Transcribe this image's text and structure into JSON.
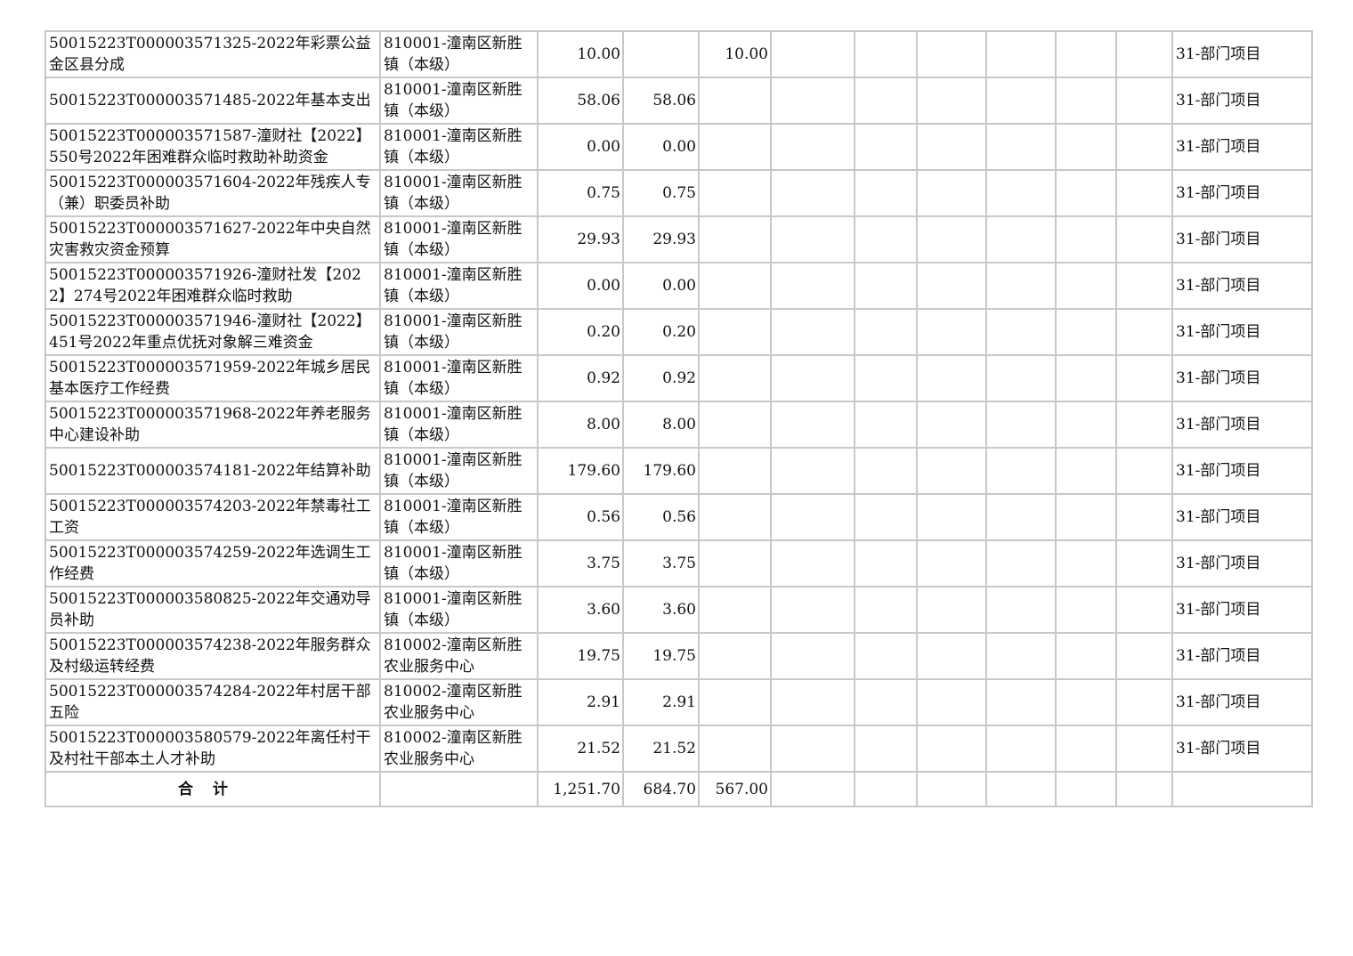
{
  "columns_count": 12,
  "rows": [
    {
      "project": "50015223T000003571325-2022年彩票公益金区县分成",
      "unit": "810001-潼南区新胜镇（本级）",
      "total": "10.00",
      "c1": "",
      "c2": "10.00",
      "type": "31-部门项目"
    },
    {
      "project": "50015223T000003571485-2022年基本支出",
      "unit": "810001-潼南区新胜镇（本级）",
      "total": "58.06",
      "c1": "58.06",
      "c2": "",
      "type": "31-部门项目"
    },
    {
      "project": "50015223T000003571587-潼财社【2022】550号2022年困难群众临时救助补助资金",
      "unit": "810001-潼南区新胜镇（本级）",
      "total": "0.00",
      "c1": "0.00",
      "c2": "",
      "type": "31-部门项目"
    },
    {
      "project": "50015223T000003571604-2022年残疾人专（兼）职委员补助",
      "unit": "810001-潼南区新胜镇（本级）",
      "total": "0.75",
      "c1": "0.75",
      "c2": "",
      "type": "31-部门项目"
    },
    {
      "project": "50015223T000003571627-2022年中央自然灾害救灾资金预算",
      "unit": "810001-潼南区新胜镇（本级）",
      "total": "29.93",
      "c1": "29.93",
      "c2": "",
      "type": "31-部门项目"
    },
    {
      "project": "50015223T000003571926-潼财社发【2022】274号2022年困难群众临时救助",
      "unit": "810001-潼南区新胜镇（本级）",
      "total": "0.00",
      "c1": "0.00",
      "c2": "",
      "type": "31-部门项目"
    },
    {
      "project": "50015223T000003571946-潼财社【2022】451号2022年重点优抚对象解三难资金",
      "unit": "810001-潼南区新胜镇（本级）",
      "total": "0.20",
      "c1": "0.20",
      "c2": "",
      "type": "31-部门项目"
    },
    {
      "project": "50015223T000003571959-2022年城乡居民基本医疗工作经费",
      "unit": "810001-潼南区新胜镇（本级）",
      "total": "0.92",
      "c1": "0.92",
      "c2": "",
      "type": "31-部门项目"
    },
    {
      "project": "50015223T000003571968-2022年养老服务中心建设补助",
      "unit": "810001-潼南区新胜镇（本级）",
      "total": "8.00",
      "c1": "8.00",
      "c2": "",
      "type": "31-部门项目"
    },
    {
      "project": "50015223T000003574181-2022年结算补助",
      "unit": "810001-潼南区新胜镇（本级）",
      "total": "179.60",
      "c1": "179.60",
      "c2": "",
      "type": "31-部门项目"
    },
    {
      "project": "50015223T000003574203-2022年禁毒社工工资",
      "unit": "810001-潼南区新胜镇（本级）",
      "total": "0.56",
      "c1": "0.56",
      "c2": "",
      "type": "31-部门项目"
    },
    {
      "project": "50015223T000003574259-2022年选调生工作经费",
      "unit": "810001-潼南区新胜镇（本级）",
      "total": "3.75",
      "c1": "3.75",
      "c2": "",
      "type": "31-部门项目"
    },
    {
      "project": "50015223T000003580825-2022年交通劝导员补助",
      "unit": "810001-潼南区新胜镇（本级）",
      "total": "3.60",
      "c1": "3.60",
      "c2": "",
      "type": "31-部门项目"
    },
    {
      "project": "50015223T000003574238-2022年服务群众及村级运转经费",
      "unit": "810002-潼南区新胜农业服务中心",
      "total": "19.75",
      "c1": "19.75",
      "c2": "",
      "type": "31-部门项目"
    },
    {
      "project": "50015223T000003574284-2022年村居干部五险",
      "unit": "810002-潼南区新胜农业服务中心",
      "total": "2.91",
      "c1": "2.91",
      "c2": "",
      "type": "31-部门项目"
    },
    {
      "project": "50015223T000003580579-2022年离任村干及村社干部本土人才补助",
      "unit": "810002-潼南区新胜农业服务中心",
      "total": "21.52",
      "c1": "21.52",
      "c2": "",
      "type": "31-部门项目"
    }
  ],
  "total_row": {
    "label": "合计",
    "total": "1,251.70",
    "c1": "684.70",
    "c2": "567.00"
  }
}
